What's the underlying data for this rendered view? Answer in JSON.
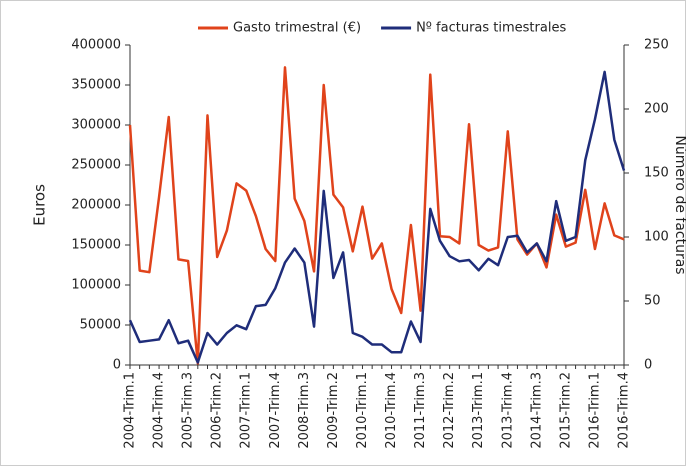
{
  "chart_data": {
    "type": "line",
    "categories": [
      "2004-Trim.1",
      null,
      null,
      "2004-Trim.4",
      null,
      null,
      "2005-Trim.3",
      null,
      null,
      "2006-Trim.2",
      null,
      null,
      "2007-Trim.1",
      null,
      null,
      "2007-Trim.4",
      null,
      null,
      "2008-Trim.3",
      null,
      null,
      "2009-Trim.2",
      null,
      null,
      "2010-Trim.1",
      null,
      null,
      "2010-Trim.4",
      null,
      null,
      "2011-Trim.3",
      null,
      null,
      "2012-Trim.2",
      null,
      null,
      "2013-Trim.1",
      null,
      null,
      "2013-Trim.4",
      null,
      null,
      "2014-Trim.3",
      null,
      null,
      "2015-Trim.2",
      null,
      null,
      "2016-Trim.1",
      null,
      null,
      "2016-Trim.4"
    ],
    "y_label": "Euros",
    "y2_label": "Número de facturas",
    "ylim": [
      0,
      400000
    ],
    "yticks": [
      0,
      50000,
      100000,
      150000,
      200000,
      250000,
      300000,
      350000,
      400000
    ],
    "y2lim": [
      0,
      250
    ],
    "y2ticks": [
      0,
      50,
      100,
      150,
      200,
      250
    ],
    "series": [
      {
        "name": "Gasto trimestral (€)",
        "color": "#e0431b",
        "values": [
          300000,
          118000,
          116000,
          210000,
          310000,
          132000,
          130000,
          2000,
          312000,
          135000,
          168000,
          227000,
          218000,
          186000,
          145000,
          130000,
          372000,
          208000,
          180000,
          117000,
          350000,
          213000,
          197000,
          142000,
          198000,
          133000,
          152000,
          95000,
          65000,
          175000,
          68000,
          363000,
          161000,
          160000,
          152000,
          301000,
          150000,
          143000,
          147000,
          292000,
          157000,
          138000,
          152000,
          122000,
          188000,
          148000,
          153000,
          219000,
          145000,
          202000,
          162000,
          157000
        ]
      },
      {
        "name": "Nº facturas timestrales",
        "color": "#1f2d7a",
        "axis": "y2",
        "values": [
          35,
          18,
          19,
          20,
          35,
          17,
          19,
          2,
          25,
          16,
          25,
          31,
          28,
          46,
          47,
          60,
          80,
          91,
          80,
          30,
          136,
          68,
          88,
          25,
          22,
          16,
          16,
          10,
          10,
          34,
          18,
          122,
          97,
          85,
          81,
          82,
          74,
          83,
          78,
          100,
          101,
          88,
          95,
          81,
          128,
          97,
          100,
          160,
          192,
          229,
          176,
          152
        ]
      }
    ]
  }
}
